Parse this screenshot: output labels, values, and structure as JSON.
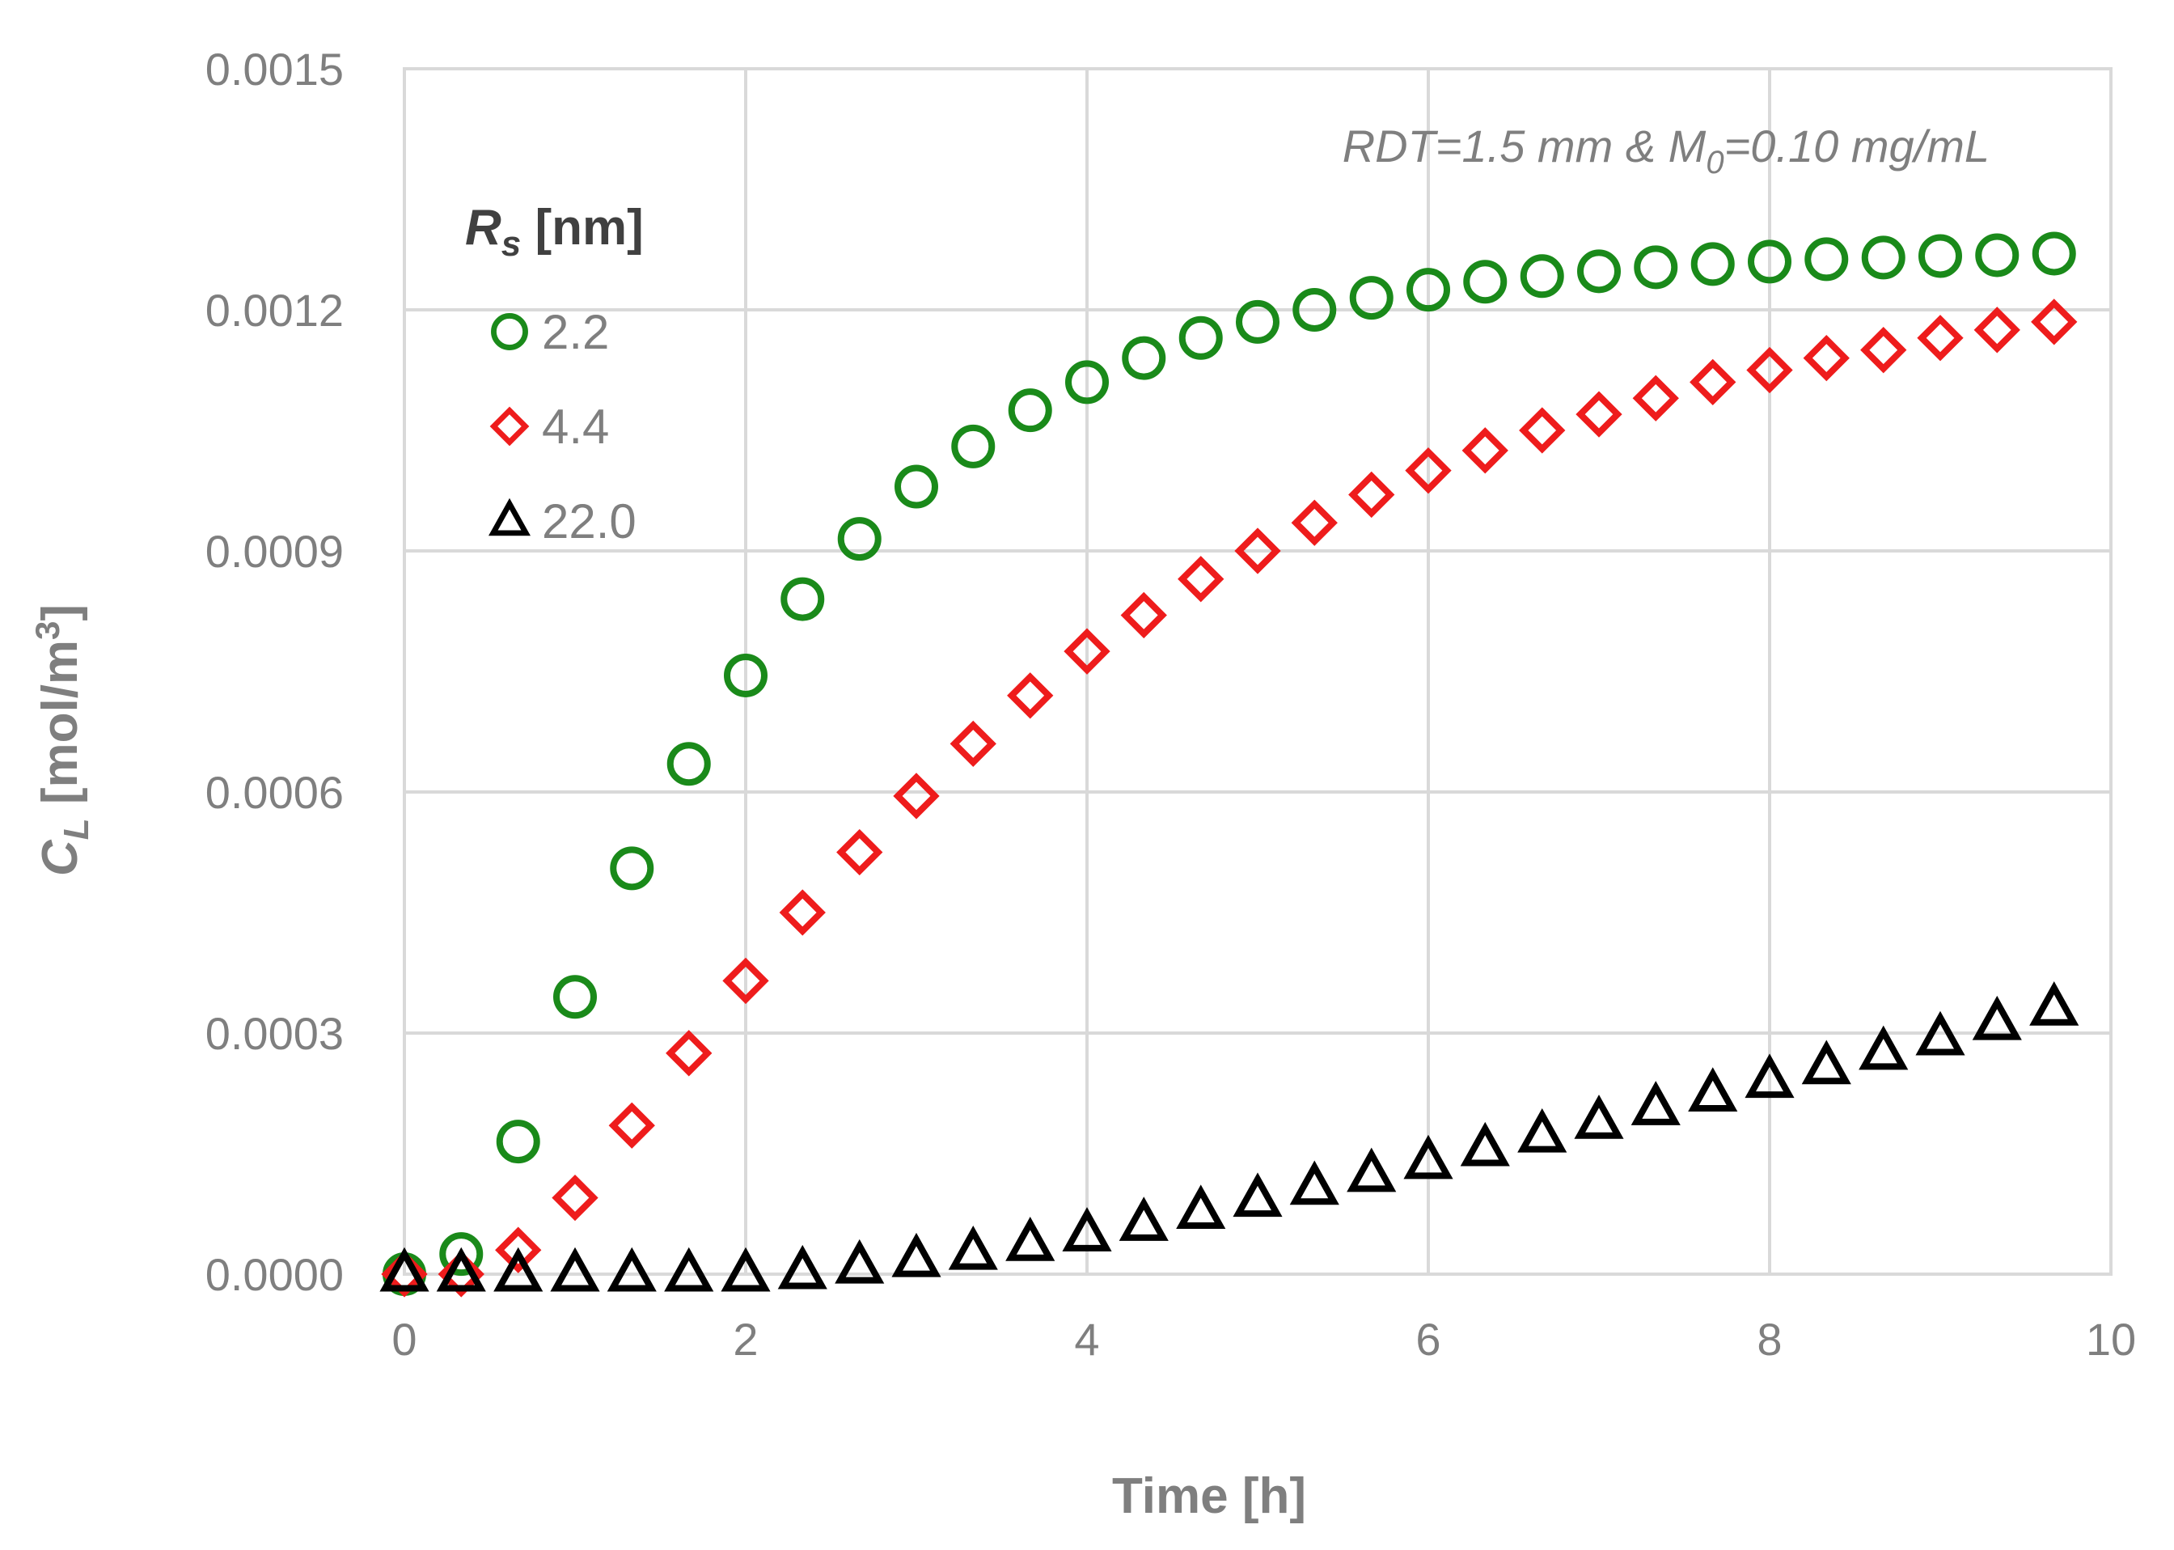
{
  "chart_data": {
    "type": "scatter",
    "title": "",
    "annotation": {
      "prefix": "RDT=1.5 mm & M",
      "sub": "0",
      "suffix": "=0.10 mg/mL"
    },
    "xlabel": "Time [h]",
    "ylabel": {
      "main": "C",
      "sub": "L",
      "unit_pre": " [mol/m",
      "sup": "3",
      "unit_post": "]"
    },
    "xlim": [
      0,
      10
    ],
    "ylim": [
      0,
      0.0015
    ],
    "x_ticks": [
      "0",
      "2",
      "4",
      "6",
      "8",
      "10"
    ],
    "y_ticks": [
      "0.0000",
      "0.0003",
      "0.0006",
      "0.0009",
      "0.0012",
      "0.0015"
    ],
    "grid": true,
    "legend": {
      "title_main": "R",
      "title_sub": "s",
      "title_unit": " [nm]",
      "placement": "top-left"
    },
    "x": [
      0,
      0.333,
      0.667,
      1.0,
      1.333,
      1.667,
      2.0,
      2.333,
      2.667,
      3.0,
      3.333,
      3.667,
      4.0,
      4.333,
      4.667,
      5.0,
      5.333,
      5.667,
      6.0,
      6.333,
      6.667,
      7.0,
      7.333,
      7.667,
      8.0,
      8.333,
      8.667,
      9.0,
      9.333,
      9.667
    ],
    "series": [
      {
        "name": "2.2",
        "marker": "circle",
        "color": "#1a8a1a",
        "values": [
          0.0,
          2.5e-05,
          0.000165,
          0.000345,
          0.000505,
          0.000635,
          0.000745,
          0.00084,
          0.000915,
          0.00098,
          0.00103,
          0.001075,
          0.00111,
          0.00114,
          0.001165,
          0.001185,
          0.0012,
          0.001215,
          0.001225,
          0.001235,
          0.001242,
          0.001248,
          0.001253,
          0.001257,
          0.00126,
          0.001263,
          0.001265,
          0.001267,
          0.001268,
          0.00127
        ]
      },
      {
        "name": "4.4",
        "marker": "diamond",
        "color": "#ee1c1c",
        "values": [
          0.0,
          0.0,
          3e-05,
          9.5e-05,
          0.000185,
          0.000275,
          0.000365,
          0.00045,
          0.000525,
          0.000595,
          0.00066,
          0.00072,
          0.000775,
          0.00082,
          0.000865,
          0.0009,
          0.000935,
          0.00097,
          0.001,
          0.001025,
          0.00105,
          0.00107,
          0.00109,
          0.00111,
          0.001125,
          0.00114,
          0.00115,
          0.001165,
          0.001175,
          0.001185
        ]
      },
      {
        "name": "22.0",
        "marker": "triangle",
        "color": "#000000",
        "values": [
          0.0,
          0.0,
          0.0,
          0.0,
          0.0,
          0.0,
          0.0,
          3e-06,
          1e-05,
          1.8e-05,
          2.7e-05,
          3.8e-05,
          5e-05,
          6.3e-05,
          7.8e-05,
          9.3e-05,
          0.000108,
          0.000124,
          0.00014,
          0.000156,
          0.000173,
          0.00019,
          0.000207,
          0.000224,
          0.000241,
          0.000258,
          0.000276,
          0.000294,
          0.000313,
          0.000331
        ]
      }
    ]
  }
}
